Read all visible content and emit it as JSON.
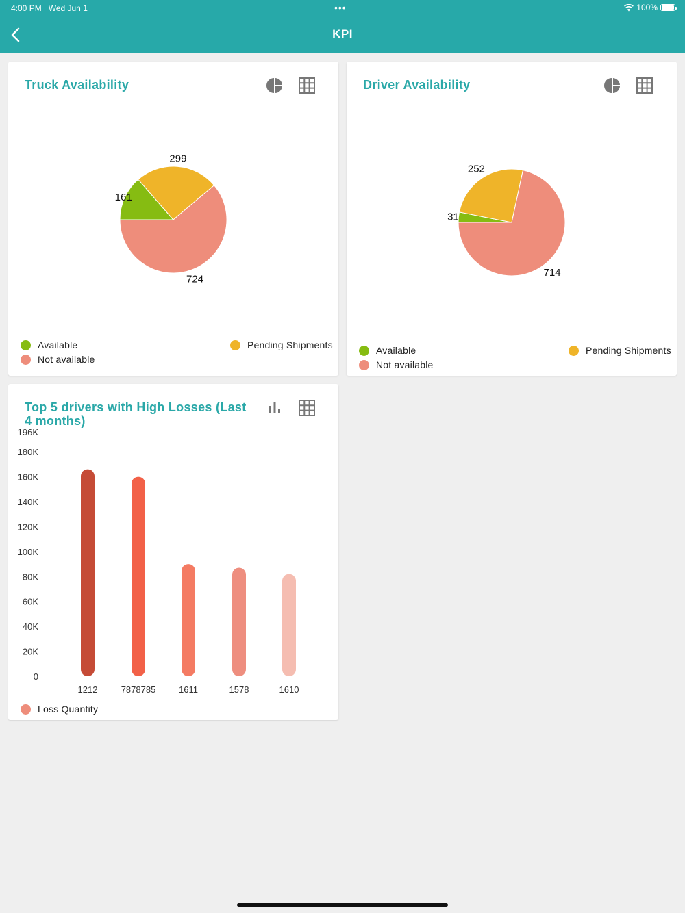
{
  "status_bar": {
    "time": "4:00 PM",
    "date": "Wed Jun 1",
    "dots": "•••",
    "battery": "100%"
  },
  "header": {
    "title": "KPI",
    "back_icon": "chevron-left-icon"
  },
  "colors": {
    "header": "#27a9a9",
    "title": "#2aa8a8",
    "available": "#86bc12",
    "not_available": "#ee8d7b",
    "pending": "#efb429",
    "loss_bars": [
      "#c54b36",
      "#f26148",
      "#f47b63",
      "#ee8e7f",
      "#f5bdb1"
    ]
  },
  "cards": {
    "truck": {
      "title": "Truck Availability",
      "icons": [
        "pie-chart-icon",
        "grid-icon"
      ],
      "legend": {
        "available": "Available",
        "not_available": "Not available",
        "pending": "Pending Shipments"
      }
    },
    "driver": {
      "title": "Driver Availability",
      "icons": [
        "pie-chart-icon",
        "grid-icon"
      ],
      "legend": {
        "available": "Available",
        "not_available": "Not available",
        "pending": "Pending Shipments"
      }
    },
    "losses": {
      "title": "Top 5 drivers with High Losses (Last 4 months)",
      "icons": [
        "bar-chart-icon",
        "grid-icon"
      ],
      "legend": "Loss Quantity"
    }
  },
  "chart_data": [
    {
      "type": "pie",
      "title": "Truck Availability",
      "labels": [
        "Available",
        "Pending Shipments",
        "Not available"
      ],
      "values": [
        161,
        299,
        724
      ]
    },
    {
      "type": "pie",
      "title": "Driver Availability",
      "labels": [
        "Available",
        "Pending Shipments",
        "Not available"
      ],
      "values": [
        31,
        252,
        714
      ]
    },
    {
      "type": "bar",
      "title": "Top 5 drivers with High Losses (Last 4 months)",
      "categories": [
        "1212",
        "7878785",
        "1611",
        "1578",
        "1610"
      ],
      "series": [
        {
          "name": "Loss Quantity",
          "values": [
            166000,
            160000,
            90000,
            87000,
            82000
          ]
        }
      ],
      "yticks": [
        "0",
        "20K",
        "40K",
        "60K",
        "80K",
        "100K",
        "120K",
        "140K",
        "160K",
        "180K",
        "196K"
      ],
      "ylim": [
        0,
        196000
      ]
    }
  ]
}
